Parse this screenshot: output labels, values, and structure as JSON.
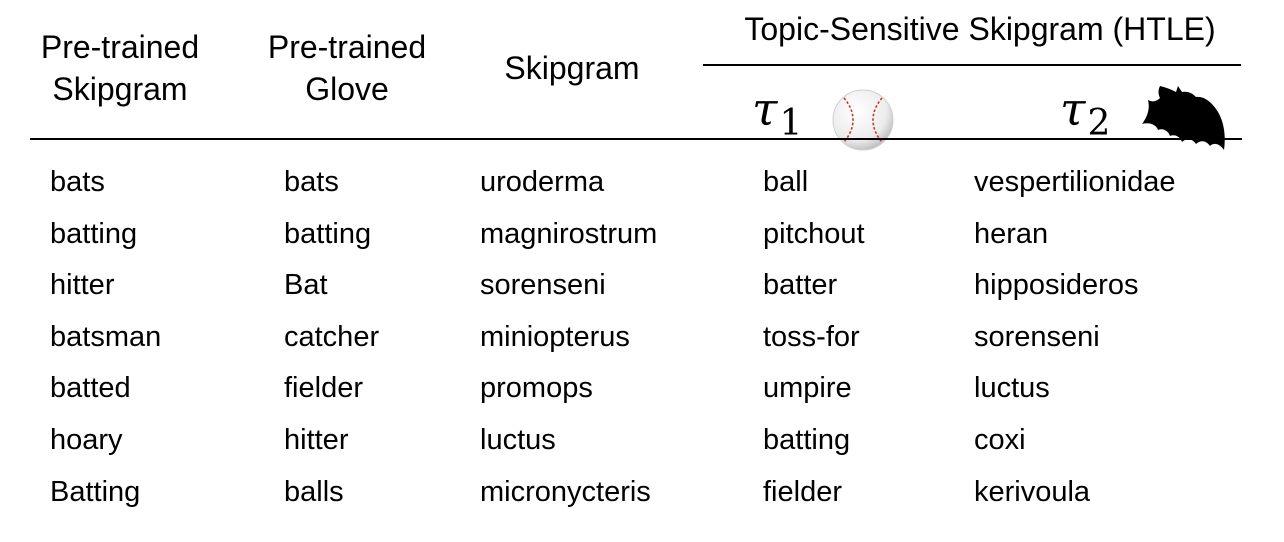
{
  "headers": {
    "pretrained_skipgram": [
      "Pre-trained",
      "Skipgram"
    ],
    "pretrained_glove": [
      "Pre-trained",
      "Glove"
    ],
    "skipgram": "Skipgram",
    "htle_group": "Topic-Sensitive Skipgram (HTLE)",
    "topic1": {
      "symbol": "τ",
      "index": "1",
      "icon": "baseball-icon"
    },
    "topic2": {
      "symbol": "τ",
      "index": "2",
      "icon": "bat-icon"
    }
  },
  "columns": [
    {
      "key": "pretrained_skipgram",
      "words": [
        "bats",
        "batting",
        "hitter",
        "batsman",
        "batted",
        "hoary",
        "Batting"
      ]
    },
    {
      "key": "pretrained_glove",
      "words": [
        "bats",
        "batting",
        "Bat",
        "catcher",
        "fielder",
        "hitter",
        "balls"
      ]
    },
    {
      "key": "skipgram",
      "words": [
        "uroderma",
        "magnirostrum",
        "sorenseni",
        "miniopterus",
        "promops",
        "luctus",
        "micronycteris"
      ]
    },
    {
      "key": "topic1",
      "words": [
        "ball",
        "pitchout",
        "batter",
        "toss-for",
        "umpire",
        "batting",
        "fielder"
      ]
    },
    {
      "key": "topic2",
      "words": [
        "vespertilionidae",
        "heran",
        "hipposideros",
        "sorenseni",
        "luctus",
        "coxi",
        "kerivoula"
      ]
    }
  ],
  "colors": {
    "text": "#000000",
    "baseball_stitch": "#c0392b"
  }
}
